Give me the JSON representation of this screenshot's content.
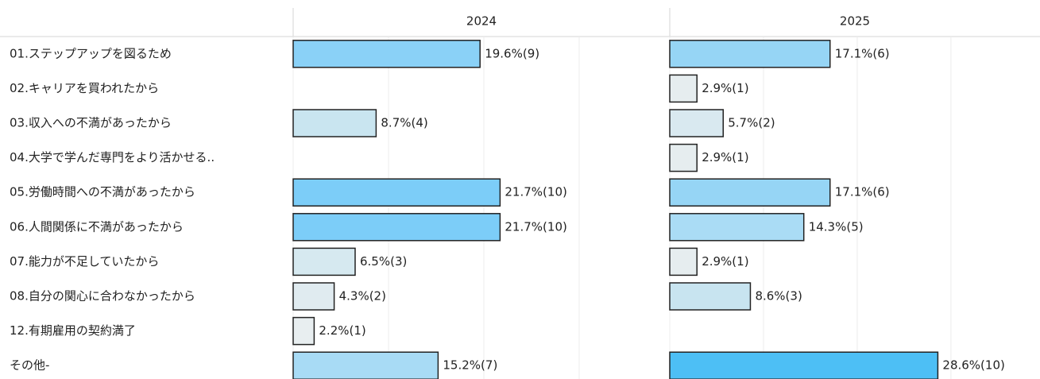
{
  "chart_data": {
    "type": "bar",
    "orientation": "horizontal",
    "categories": [
      "01.ステップアップを図るため",
      "02.キャリアを買われたから",
      "03.収入への不満があったから",
      "04.大学で学んだ専門をより活かせる..",
      "05.労働時間への不満があったから",
      "06.人間関係に不満があったから",
      "07.能力が不足していたから",
      "08.自分の関心に合わなかったから",
      "12.有期雇用の契約満了",
      "その他-"
    ],
    "xlim": [
      0,
      39.5
    ],
    "xticks": [
      0,
      10,
      20,
      30
    ],
    "grid": true,
    "series": [
      {
        "name": "2024",
        "values": [
          19.6,
          null,
          8.7,
          null,
          21.7,
          21.7,
          6.5,
          4.3,
          2.2,
          15.2
        ],
        "value_labels": [
          "19.6%(9)",
          null,
          "8.7%(4)",
          null,
          "21.7%(10)",
          "21.7%(10)",
          "6.5%(3)",
          "4.3%(2)",
          "2.2%(1)",
          "15.2%(7)"
        ],
        "colors": [
          "#8ad1f7",
          null,
          "#c9e5f0",
          null,
          "#7ccdf8",
          "#7ccdf8",
          "#d6e9f0",
          "#e0ebf0",
          "#e8eef0",
          "#a8dbf5"
        ]
      },
      {
        "name": "2025",
        "values": [
          17.1,
          2.9,
          5.7,
          2.9,
          17.1,
          14.3,
          2.9,
          8.6,
          null,
          28.6
        ],
        "value_labels": [
          "17.1%(6)",
          "2.9%(1)",
          "5.7%(2)",
          "2.9%(1)",
          "17.1%(6)",
          "14.3%(5)",
          "2.9%(1)",
          "8.6%(3)",
          null,
          "28.6%(10)"
        ],
        "colors": [
          "#96d5f5",
          "#e6edef",
          "#d9e9f0",
          "#e6edef",
          "#96d5f5",
          "#aadcf5",
          "#e6edef",
          "#c8e4f0",
          null,
          "#4dbff5"
        ]
      }
    ]
  }
}
